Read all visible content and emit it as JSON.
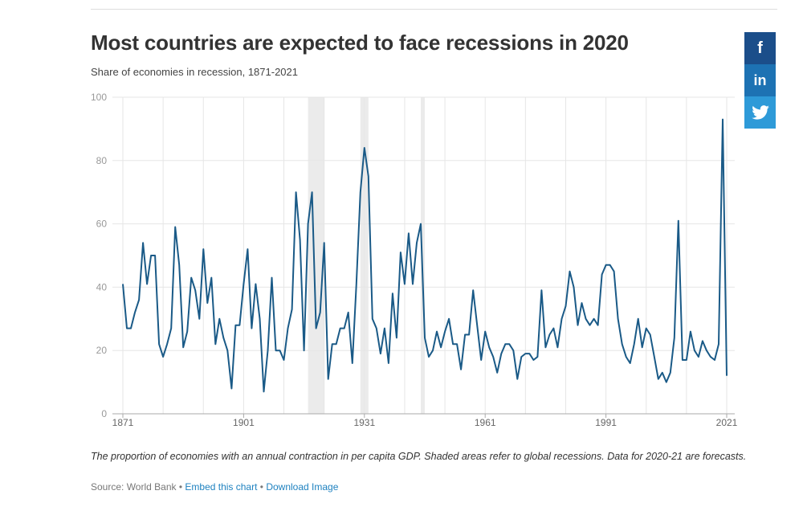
{
  "header": {
    "title": "Most countries are expected to face recessions in 2020",
    "subtitle": "Share of economies in recession, 1871-2021"
  },
  "share": {
    "facebook": "f",
    "linkedin": "in",
    "twitter_icon": "twitter-bird-icon"
  },
  "footer": {
    "note": "The proportion of economies with an annual contraction in per capita GDP. Shaded areas refer to global recessions. Data for 2020-21 are forecasts.",
    "source_label": "Source: World Bank",
    "separator": "•",
    "embed_link": "Embed this chart",
    "download_link": "Download Image"
  },
  "colors": {
    "line": "#1a5a87",
    "recession_band": "#ebebeb",
    "grid": "#e6e6e6",
    "axis_text": "#999999"
  },
  "chart_data": {
    "type": "line",
    "title": "Most countries are expected to face recessions in 2020",
    "subtitle": "Share of economies in recession, 1871-2021",
    "xlabel": "",
    "ylabel": "",
    "xlim": [
      1871,
      2021
    ],
    "ylim": [
      0,
      100
    ],
    "x_ticks": [
      1871,
      1901,
      1931,
      1961,
      1991,
      2021
    ],
    "y_ticks": [
      0,
      20,
      40,
      60,
      80,
      100
    ],
    "grid": true,
    "shaded_periods": [
      [
        1917,
        1921
      ],
      [
        1930,
        1932
      ],
      [
        1945,
        1946
      ]
    ],
    "series": [
      {
        "x": [
          1871,
          1872,
          1873,
          1874,
          1875,
          1876,
          1877,
          1878,
          1879,
          1880,
          1881,
          1882,
          1883,
          1884,
          1885,
          1886,
          1887,
          1888,
          1889,
          1890,
          1891,
          1892,
          1893,
          1894,
          1895,
          1896,
          1897,
          1898,
          1899,
          1900,
          1901,
          1902,
          1903,
          1904,
          1905,
          1906,
          1907,
          1908,
          1909,
          1910,
          1911,
          1912,
          1913,
          1914,
          1915,
          1916,
          1917,
          1918,
          1919,
          1920,
          1921,
          1922,
          1923,
          1924,
          1925,
          1926,
          1927,
          1928,
          1929,
          1930,
          1931,
          1932,
          1933,
          1934,
          1935,
          1936,
          1937,
          1938,
          1939,
          1940,
          1941,
          1942,
          1943,
          1944,
          1945,
          1946,
          1947,
          1948,
          1949,
          1950,
          1951,
          1952,
          1953,
          1954,
          1955,
          1956,
          1957,
          1958,
          1959,
          1960,
          1961,
          1962,
          1963,
          1964,
          1965,
          1966,
          1967,
          1968,
          1969,
          1970,
          1971,
          1972,
          1973,
          1974,
          1975,
          1976,
          1977,
          1978,
          1979,
          1980,
          1981,
          1982,
          1983,
          1984,
          1985,
          1986,
          1987,
          1988,
          1989,
          1990,
          1991,
          1992,
          1993,
          1994,
          1995,
          1996,
          1997,
          1998,
          1999,
          2000,
          2001,
          2002,
          2003,
          2004,
          2005,
          2006,
          2007,
          2008,
          2009,
          2010,
          2011,
          2012,
          2013,
          2014,
          2015,
          2016,
          2017,
          2018,
          2019,
          2020,
          2021
        ],
        "values": [
          41,
          27,
          27,
          32,
          36,
          54,
          41,
          50,
          50,
          22,
          18,
          22,
          27,
          59,
          47,
          21,
          26,
          43,
          39,
          30,
          52,
          35,
          43,
          22,
          30,
          24,
          20,
          8,
          28,
          28,
          41,
          52,
          27,
          41,
          30,
          7,
          20,
          43,
          20,
          20,
          17,
          27,
          33,
          70,
          55,
          20,
          60,
          70,
          27,
          32,
          54,
          11,
          22,
          22,
          27,
          27,
          32,
          16,
          41,
          70,
          84,
          75,
          30,
          27,
          19,
          27,
          16,
          38,
          24,
          51,
          41,
          57,
          41,
          54,
          60,
          24,
          18,
          20,
          26,
          21,
          26,
          30,
          22,
          22,
          14,
          25,
          25,
          39,
          28,
          17,
          26,
          21,
          18,
          13,
          19,
          22,
          22,
          20,
          11,
          18,
          19,
          19,
          17,
          18,
          39,
          21,
          25,
          27,
          21,
          30,
          34,
          45,
          40,
          28,
          35,
          30,
          28,
          30,
          28,
          44,
          47,
          47,
          45,
          30,
          22,
          18,
          16,
          22,
          30,
          21,
          27,
          25,
          18,
          11,
          13,
          10,
          13,
          24,
          61,
          17,
          17,
          26,
          20,
          18,
          23,
          20,
          18,
          17,
          22,
          93,
          12
        ]
      }
    ]
  }
}
